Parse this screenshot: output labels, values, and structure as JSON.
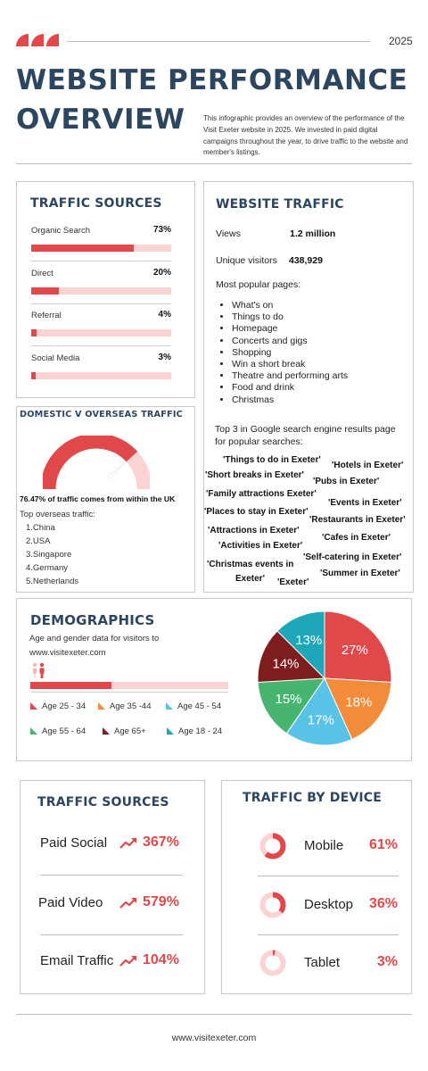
{
  "header": {
    "year": "2025",
    "title_line1": "WEBSITE PERFORMANCE",
    "title_line2": "OVERVIEW",
    "intro": "This infographic provides an overview of the performance of the Visit Exeter website in 2025. We invested in paid digital campaigns throughout the year, to drive traffic to the website and member's listings.",
    "accent": "#e0484a",
    "navy": "#2d4660"
  },
  "traffic_sources": {
    "title": "TRAFFIC SOURCES",
    "items": [
      {
        "label": "Organic Search",
        "value_text": "73%",
        "value": 73
      },
      {
        "label": "Direct",
        "value_text": "20%",
        "value": 20
      },
      {
        "label": "Referral",
        "value_text": "4%",
        "value": 4
      },
      {
        "label": "Social Media",
        "value_text": "3%",
        "value": 3
      }
    ]
  },
  "website_traffic": {
    "title": "WEBSITE TRAFFIC",
    "views_label": "Views",
    "views_value": "1.2 million",
    "unique_label": "Unique visitors",
    "unique_value": "438,929",
    "popular_label": "Most popular pages:",
    "pages": [
      "What's on",
      "Things to do",
      "Homepage",
      "Concerts and gigs",
      "Shopping",
      "Win a short break",
      "Theatre and performing arts",
      "Food and drink",
      "Christmas"
    ],
    "search_intro": "Top 3 in Google search engine results page for popular searches:",
    "searches": [
      "'Things to do in Exeter'",
      "'Hotels in Exeter'",
      "'Short breaks in Exeter'",
      "'Pubs in Exeter'",
      "'Family attractions Exeter'",
      "'Events in Exeter'",
      "'Places to stay in Exeter'",
      "'Restaurants in Exeter'",
      "'Attractions in Exeter'",
      "'Cafes in Exeter'",
      "'Activities in Exeter'",
      "'Self-catering in Exeter'",
      "'Christmas events in",
      "Exeter'",
      "'Summer in Exeter'",
      "'Exeter'"
    ]
  },
  "domestic": {
    "title": "DOMESTIC V OVERSEAS TRAFFIC",
    "gauge_fraction": 0.7647,
    "statement": "76.47% of traffic comes from within the UK",
    "overseas_label": "Top overseas traffic:",
    "countries": [
      "1.China",
      "2.USA",
      "3.Singapore",
      "4.Germany",
      "5.Netherlands"
    ]
  },
  "demographics": {
    "title": "DEMOGRAPHICS",
    "subtitle_line1": "Age and gender data for visitors to",
    "subtitle_line2": "www.visitexeter.com",
    "gender_bar_fraction": 0.41,
    "icon": "people-icon",
    "legend": [
      {
        "label": "Age 25 - 34",
        "color": "#e0484a"
      },
      {
        "label": "Age 35 -44",
        "color": "#f28c3a"
      },
      {
        "label": "Age 45 - 54",
        "color": "#58c3e6"
      },
      {
        "label": "Age 55 - 64",
        "color": "#47b56f"
      },
      {
        "label": "Age 65+",
        "color": "#7e1d1d"
      },
      {
        "label": "Age 18 - 24",
        "color": "#1da7b8"
      }
    ]
  },
  "chart_data": {
    "type": "pie",
    "categories": [
      "Age 25 - 34",
      "Age 35 -44",
      "Age 45 - 54",
      "Age 55 - 64",
      "Age 65+",
      "Age 18 - 24"
    ],
    "values": [
      27,
      18,
      17,
      15,
      14,
      13
    ],
    "labels": [
      "27%",
      "18%",
      "17%",
      "15%",
      "14%",
      "13%"
    ],
    "colors": [
      "#e0484a",
      "#f28c3a",
      "#58c3e6",
      "#47b56f",
      "#7e1d1d",
      "#1da7b8"
    ]
  },
  "traffic_sources_paid": {
    "title": "TRAFFIC SOURCES",
    "items": [
      {
        "label": "Paid Social",
        "value": "367%"
      },
      {
        "label": "Paid Video",
        "value": "579%"
      },
      {
        "label": "Email Traffic",
        "value": "104%"
      }
    ]
  },
  "traffic_by_device": {
    "title": "TRAFFIC BY DEVICE",
    "items": [
      {
        "label": "Mobile",
        "value": "61%",
        "fraction": 0.61
      },
      {
        "label": "Desktop",
        "value": "36%",
        "fraction": 0.36
      },
      {
        "label": "Tablet",
        "value": "3%",
        "fraction": 0.03
      }
    ]
  },
  "footer": {
    "url": "www.visitexeter.com"
  }
}
